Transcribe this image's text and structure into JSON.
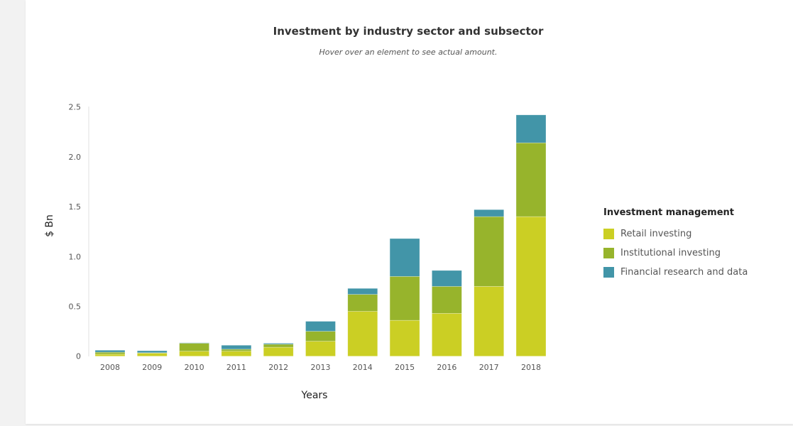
{
  "chart_data": {
    "type": "bar",
    "stacked": true,
    "title": "Investment by industry sector and subsector",
    "subtitle": "Hover over an element to see actual amount.",
    "xlabel": "Years",
    "ylabel": "$ Bn",
    "ylim": [
      0,
      2.5
    ],
    "yticks": [
      "0",
      "0.5",
      "1.0",
      "1.5",
      "2.0",
      "2.5"
    ],
    "ytick_values": [
      0,
      0.5,
      1.0,
      1.5,
      2.0,
      2.5
    ],
    "categories": [
      "2008",
      "2009",
      "2010",
      "2011",
      "2012",
      "2013",
      "2014",
      "2015",
      "2016",
      "2017",
      "2018"
    ],
    "legend_title": "Investment management",
    "legend_position": "right",
    "series": [
      {
        "name": "Retail investing",
        "color": "#cbcf24",
        "values": [
          0.02,
          0.03,
          0.05,
          0.05,
          0.09,
          0.15,
          0.45,
          0.36,
          0.43,
          0.7,
          1.4
        ]
      },
      {
        "name": "Institutional investing",
        "color": "#97b42c",
        "values": [
          0.02,
          0.005,
          0.08,
          0.02,
          0.03,
          0.1,
          0.17,
          0.44,
          0.27,
          0.7,
          0.74
        ]
      },
      {
        "name": "Financial research and data",
        "color": "#4295a8",
        "values": [
          0.02,
          0.02,
          0.005,
          0.04,
          0.01,
          0.1,
          0.06,
          0.38,
          0.16,
          0.07,
          0.28
        ]
      }
    ]
  }
}
